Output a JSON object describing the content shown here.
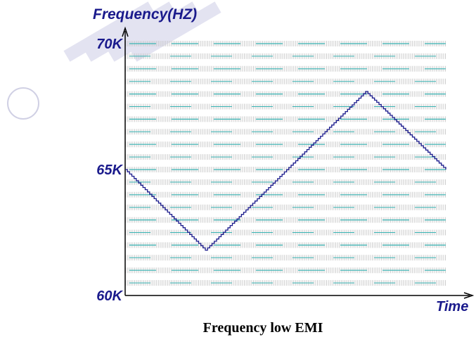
{
  "chart_data": {
    "type": "line",
    "title": "Frequency low EMI",
    "xlabel": "Time",
    "ylabel": "Frequency(HZ)",
    "ylim": [
      60,
      70
    ],
    "y_tick_labels": [
      "60K",
      "65K",
      "70K"
    ],
    "y_ticks": [
      60,
      65,
      70
    ],
    "x_range": [
      0,
      1
    ],
    "grid": true,
    "series": [
      {
        "x": [
          0,
          0.25,
          0.75,
          1.0
        ],
        "values": [
          65.0,
          61.8,
          68.1,
          65.0
        ]
      }
    ],
    "colors": {
      "line": "#1a1a8c",
      "axis": "#000000",
      "text": "#1a1a8c",
      "grid_dashed": "#3ab5b5",
      "grid_dotted": "#c8c8c8",
      "watermark": "#e3e3f1"
    }
  }
}
